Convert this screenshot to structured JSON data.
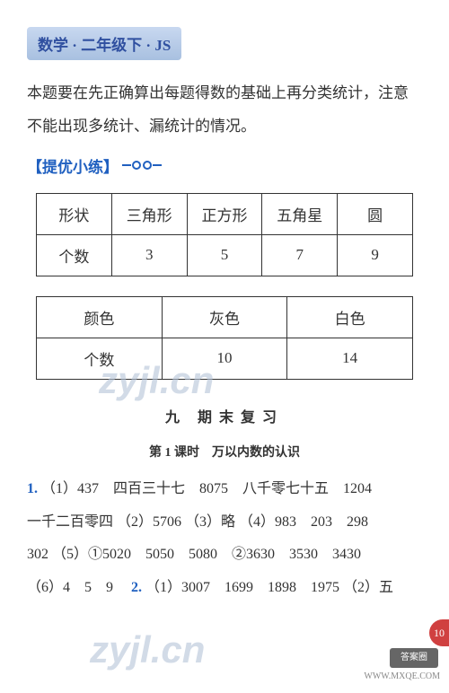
{
  "header": {
    "title": "数学 · 二年级下 · JS"
  },
  "intro_text": "本题要在先正确算出每题得数的基础上再分类统计，注意不能出现多统计、漏统计的情况。",
  "section_label": "【提优小练】",
  "table1": {
    "headers": [
      "形状",
      "三角形",
      "正方形",
      "五角星",
      "圆"
    ],
    "row_label": "个数",
    "values": [
      "3",
      "5",
      "7",
      "9"
    ]
  },
  "table2": {
    "headers": [
      "颜色",
      "灰色",
      "白色"
    ],
    "row_label": "个数",
    "values": [
      "10",
      "14"
    ]
  },
  "unit_title": "九 期末复习",
  "lesson_title": "第 1 课时　万以内数的认识",
  "answers": {
    "q1_num": "1.",
    "q1_line1": "（1）437　四百三十七　8075　八千零七十五　1204",
    "q1_line2": "一千二百零四 （2）5706 （3）略 （4）983　203　298",
    "q1_line3": "302 （5）①5020　5050　5080　②3630　3530　3430",
    "q1_line4_a": "（6）4　5　9　",
    "q2_num": "2.",
    "q1_line4_b": "（1）3007　1699　1898　1975 （2）五"
  },
  "watermark": "zyjl.cn",
  "footer": {
    "logo": "答案圈",
    "url": "WWW.MXQE.COM"
  },
  "page_corner": "10"
}
